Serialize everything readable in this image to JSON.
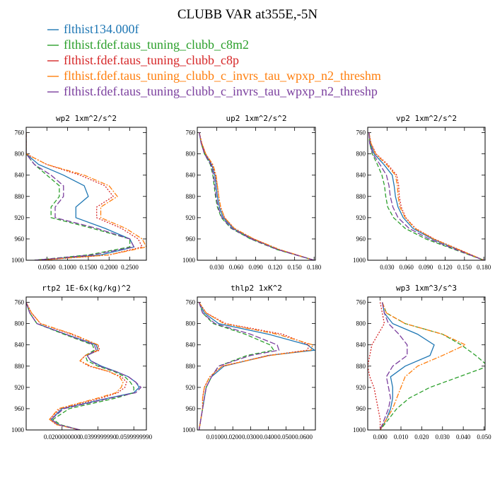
{
  "title": "CLUBB VAR at355E,-5N",
  "legend": [
    {
      "label": "flthist134.000f",
      "color": "#1f77b4",
      "dash": ""
    },
    {
      "label": "flthist.fdef.taus_tuning_clubb_c8m2",
      "color": "#2ca02c",
      "dash": "6,3"
    },
    {
      "label": "flthist.fdef.taus_tuning_clubb_c8p",
      "color": "#d62728",
      "dash": "2,2"
    },
    {
      "label": "flthist.fdef.taus_tuning_clubb_c_invrs_tau_wpxp_n2_threshm",
      "color": "#ff7f0e",
      "dash": "7,2,2,2"
    },
    {
      "label": "flthist.fdef.taus_tuning_clubb_c_invrs_tau_wpxp_n2_threshp",
      "color": "#7b3f9e",
      "dash": "8,3"
    }
  ],
  "chart_data": [
    {
      "type": "line",
      "title": "wp2  1xm^2/s^2",
      "xlim": [
        0.0,
        0.29
      ],
      "ylim": [
        1000,
        750
      ],
      "xticks": [
        0.05,
        0.1,
        0.15,
        0.2,
        0.25
      ],
      "xtick_labels": [
        "0.0500",
        "0.1000",
        "0.1500",
        "0.2000",
        "0.2500"
      ],
      "yticks": [
        760,
        800,
        840,
        880,
        920,
        960,
        1000
      ],
      "ytick_labels": [
        "760",
        "800",
        "840",
        "880",
        "920",
        "960",
        "1000"
      ],
      "levels": [
        760,
        780,
        800,
        820,
        840,
        860,
        880,
        900,
        920,
        940,
        960,
        975,
        990,
        1000
      ],
      "series": [
        {
          "values": [
            0.0,
            0.0,
            0.0,
            0.03,
            0.09,
            0.14,
            0.15,
            0.12,
            0.12,
            0.19,
            0.25,
            0.26,
            0.18,
            0.03
          ]
        },
        {
          "values": [
            0.0,
            0.0,
            0.0,
            0.02,
            0.05,
            0.08,
            0.08,
            0.06,
            0.06,
            0.16,
            0.25,
            0.25,
            0.15,
            0.02
          ]
        },
        {
          "values": [
            0.0,
            0.0,
            0.0,
            0.05,
            0.13,
            0.19,
            0.21,
            0.17,
            0.17,
            0.23,
            0.27,
            0.28,
            0.2,
            0.03
          ]
        },
        {
          "values": [
            0.0,
            0.0,
            0.0,
            0.05,
            0.14,
            0.2,
            0.22,
            0.18,
            0.18,
            0.24,
            0.28,
            0.29,
            0.2,
            0.03
          ]
        },
        {
          "values": [
            0.0,
            0.0,
            0.0,
            0.02,
            0.06,
            0.09,
            0.09,
            0.07,
            0.07,
            0.17,
            0.25,
            0.26,
            0.16,
            0.02
          ]
        }
      ]
    },
    {
      "type": "line",
      "title": "up2  1xm^2/s^2",
      "xlim": [
        0.0,
        0.182
      ],
      "ylim": [
        1000,
        750
      ],
      "xticks": [
        0.03,
        0.06,
        0.09,
        0.12,
        0.15,
        0.18
      ],
      "xtick_labels": [
        "0.030",
        "0.060",
        "0.090",
        "0.120",
        "0.150",
        "0.180"
      ],
      "yticks": [
        760,
        800,
        840,
        880,
        920,
        960,
        1000
      ],
      "ytick_labels": [
        "760",
        "800",
        "840",
        "880",
        "920",
        "960",
        "1000"
      ],
      "levels": [
        760,
        780,
        800,
        820,
        840,
        860,
        880,
        900,
        920,
        940,
        960,
        980,
        1000
      ],
      "series": [
        {
          "values": [
            0.003,
            0.006,
            0.012,
            0.022,
            0.027,
            0.029,
            0.031,
            0.034,
            0.04,
            0.055,
            0.085,
            0.125,
            0.18
          ]
        },
        {
          "values": [
            0.003,
            0.006,
            0.011,
            0.02,
            0.024,
            0.026,
            0.028,
            0.031,
            0.037,
            0.052,
            0.082,
            0.123,
            0.18
          ]
        },
        {
          "values": [
            0.003,
            0.007,
            0.013,
            0.023,
            0.028,
            0.031,
            0.033,
            0.036,
            0.042,
            0.057,
            0.087,
            0.127,
            0.18
          ]
        },
        {
          "values": [
            0.003,
            0.007,
            0.013,
            0.024,
            0.029,
            0.031,
            0.033,
            0.036,
            0.042,
            0.057,
            0.087,
            0.127,
            0.18
          ]
        },
        {
          "values": [
            0.003,
            0.006,
            0.011,
            0.021,
            0.025,
            0.027,
            0.029,
            0.032,
            0.038,
            0.053,
            0.083,
            0.124,
            0.18
          ]
        }
      ]
    },
    {
      "type": "line",
      "title": "vp2  1xm^2/s^2",
      "xlim": [
        0.0,
        0.182
      ],
      "ylim": [
        1000,
        750
      ],
      "xticks": [
        0.03,
        0.06,
        0.09,
        0.12,
        0.15,
        0.18
      ],
      "xtick_labels": [
        "0.030",
        "0.060",
        "0.090",
        "0.120",
        "0.150",
        "0.180"
      ],
      "yticks": [
        760,
        800,
        840,
        880,
        920,
        960,
        1000
      ],
      "ytick_labels": [
        "760",
        "800",
        "840",
        "880",
        "920",
        "960",
        "1000"
      ],
      "levels": [
        760,
        780,
        800,
        820,
        840,
        860,
        880,
        900,
        920,
        940,
        960,
        980,
        1000
      ],
      "series": [
        {
          "values": [
            0.002,
            0.004,
            0.01,
            0.025,
            0.038,
            0.041,
            0.043,
            0.047,
            0.055,
            0.07,
            0.1,
            0.14,
            0.18
          ]
        },
        {
          "values": [
            0.002,
            0.003,
            0.007,
            0.015,
            0.022,
            0.026,
            0.028,
            0.031,
            0.04,
            0.058,
            0.09,
            0.135,
            0.18
          ]
        },
        {
          "values": [
            0.002,
            0.005,
            0.013,
            0.031,
            0.045,
            0.048,
            0.049,
            0.052,
            0.059,
            0.074,
            0.103,
            0.142,
            0.18
          ]
        },
        {
          "values": [
            0.002,
            0.005,
            0.012,
            0.029,
            0.043,
            0.046,
            0.047,
            0.05,
            0.058,
            0.073,
            0.102,
            0.141,
            0.18
          ]
        },
        {
          "values": [
            0.002,
            0.003,
            0.008,
            0.019,
            0.029,
            0.033,
            0.035,
            0.039,
            0.047,
            0.064,
            0.095,
            0.137,
            0.18
          ]
        }
      ]
    },
    {
      "type": "line",
      "title": "rtp2  1E-6x(kg/kg)^2",
      "xlim": [
        0.0,
        0.067
      ],
      "ylim": [
        1000,
        750
      ],
      "xticks": [
        0.02,
        0.04,
        0.06
      ],
      "xtick_labels": [
        "0.0200000000",
        "0.0399999990",
        "0.0599999990"
      ],
      "yticks": [
        760,
        800,
        840,
        880,
        920,
        960,
        1000
      ],
      "ytick_labels": [
        "760",
        "800",
        "840",
        "880",
        "920",
        "960",
        "1000"
      ],
      "levels": [
        760,
        780,
        800,
        820,
        840,
        850,
        860,
        870,
        880,
        890,
        900,
        910,
        920,
        930,
        940,
        960,
        980,
        990,
        1000
      ],
      "series": [
        {
          "values": [
            0.0,
            0.002,
            0.006,
            0.022,
            0.039,
            0.04,
            0.034,
            0.036,
            0.042,
            0.05,
            0.057,
            0.061,
            0.063,
            0.06,
            0.046,
            0.02,
            0.014,
            0.018,
            0.03
          ]
        },
        {
          "values": [
            0.0,
            0.002,
            0.006,
            0.021,
            0.037,
            0.038,
            0.033,
            0.034,
            0.04,
            0.049,
            0.055,
            0.058,
            0.06,
            0.06,
            0.05,
            0.024,
            0.015,
            0.019,
            0.03
          ]
        },
        {
          "values": [
            0.0,
            0.003,
            0.008,
            0.025,
            0.04,
            0.041,
            0.033,
            0.03,
            0.035,
            0.046,
            0.053,
            0.056,
            0.055,
            0.051,
            0.042,
            0.019,
            0.013,
            0.017,
            0.03
          ]
        },
        {
          "values": [
            0.0,
            0.003,
            0.008,
            0.026,
            0.04,
            0.04,
            0.033,
            0.03,
            0.036,
            0.046,
            0.052,
            0.054,
            0.053,
            0.05,
            0.04,
            0.018,
            0.013,
            0.017,
            0.03
          ]
        },
        {
          "values": [
            0.0,
            0.002,
            0.006,
            0.022,
            0.038,
            0.039,
            0.034,
            0.036,
            0.041,
            0.05,
            0.057,
            0.061,
            0.064,
            0.061,
            0.047,
            0.021,
            0.014,
            0.018,
            0.03
          ]
        }
      ]
    },
    {
      "type": "line",
      "title": "thlp2  1xK^2",
      "xlim": [
        0.0,
        0.0665
      ],
      "ylim": [
        1000,
        750
      ],
      "xticks": [
        0.01,
        0.02,
        0.03,
        0.04,
        0.05,
        0.06
      ],
      "xtick_labels": [
        "0.0100",
        "0.0200",
        "0.0300",
        "0.0400",
        "0.0500",
        "0.0600"
      ],
      "yticks": [
        760,
        800,
        840,
        880,
        920,
        960,
        1000
      ],
      "ytick_labels": [
        "760",
        "800",
        "840",
        "880",
        "920",
        "960",
        "1000"
      ],
      "levels": [
        760,
        780,
        800,
        820,
        840,
        850,
        860,
        880,
        900,
        920,
        940,
        960,
        980,
        1000
      ],
      "series": [
        {
          "values": [
            0.001,
            0.004,
            0.012,
            0.04,
            0.062,
            0.066,
            0.04,
            0.015,
            0.008,
            0.005,
            0.004,
            0.003,
            0.002,
            0.001
          ]
        },
        {
          "values": [
            0.001,
            0.003,
            0.009,
            0.027,
            0.041,
            0.043,
            0.028,
            0.012,
            0.008,
            0.005,
            0.004,
            0.003,
            0.002,
            0.001
          ]
        },
        {
          "values": [
            0.001,
            0.005,
            0.016,
            0.048,
            0.063,
            0.062,
            0.04,
            0.014,
            0.007,
            0.004,
            0.003,
            0.003,
            0.002,
            0.001
          ]
        },
        {
          "values": [
            0.001,
            0.005,
            0.015,
            0.045,
            0.065,
            0.064,
            0.041,
            0.014,
            0.007,
            0.004,
            0.003,
            0.003,
            0.002,
            0.001
          ]
        },
        {
          "values": [
            0.001,
            0.003,
            0.01,
            0.03,
            0.045,
            0.046,
            0.03,
            0.012,
            0.008,
            0.005,
            0.004,
            0.003,
            0.002,
            0.001
          ]
        }
      ]
    },
    {
      "type": "line",
      "title": "wp3  1xm^3/s^3",
      "xlim": [
        -0.006,
        0.0505
      ],
      "ylim": [
        1000,
        750
      ],
      "xticks": [
        0.0,
        0.01,
        0.02,
        0.03,
        0.04,
        0.05
      ],
      "xtick_labels": [
        "0.000",
        "0.010",
        "0.020",
        "0.030",
        "0.040",
        "0.050"
      ],
      "yticks": [
        760,
        800,
        840,
        880,
        920,
        960,
        1000
      ],
      "ytick_labels": [
        "760",
        "800",
        "840",
        "880",
        "920",
        "960",
        "1000"
      ],
      "levels": [
        760,
        780,
        800,
        820,
        840,
        860,
        880,
        900,
        920,
        940,
        960,
        980,
        1000
      ],
      "series": [
        {
          "values": [
            0.001,
            0.002,
            0.006,
            0.018,
            0.026,
            0.024,
            0.012,
            0.005,
            0.006,
            0.006,
            0.005,
            0.003,
            0.0
          ]
        },
        {
          "values": [
            0.001,
            0.003,
            0.012,
            0.03,
            0.039,
            0.046,
            0.052,
            0.038,
            0.024,
            0.014,
            0.008,
            0.004,
            0.0
          ]
        },
        {
          "values": [
            0.0,
            0.001,
            0.002,
            -0.001,
            -0.004,
            -0.005,
            -0.006,
            -0.005,
            -0.003,
            -0.002,
            -0.001,
            0.0,
            0.0
          ]
        },
        {
          "values": [
            0.001,
            0.003,
            0.012,
            0.03,
            0.041,
            0.03,
            0.018,
            0.012,
            0.01,
            0.008,
            0.006,
            0.003,
            0.0
          ]
        },
        {
          "values": [
            0.001,
            0.002,
            0.004,
            0.009,
            0.013,
            0.013,
            0.006,
            0.003,
            0.004,
            0.005,
            0.004,
            0.002,
            0.0
          ]
        }
      ]
    }
  ]
}
